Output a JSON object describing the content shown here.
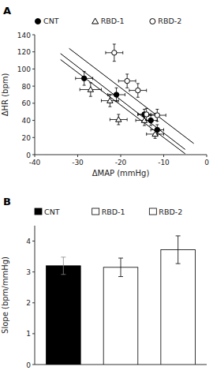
{
  "chart_data": [
    {
      "type": "scatter",
      "title": "A",
      "xlabel": "ΔMAP (mmHg)",
      "ylabel": "ΔHR (bpm)",
      "xlim": [
        -40,
        0
      ],
      "ylim": [
        0,
        140
      ],
      "xticks": [
        -40,
        -30,
        -20,
        -10,
        0
      ],
      "yticks": [
        0,
        20,
        40,
        60,
        80,
        100,
        120,
        140
      ],
      "grid": false,
      "legend": "top",
      "series": [
        {
          "name": "CNT",
          "color": "black",
          "marker": "circle",
          "x": [
            -28.5,
            -21.0,
            -14.5,
            -13.0,
            -11.5
          ],
          "values": [
            89,
            70,
            47,
            40,
            29
          ],
          "x_errors": [
            2.0,
            2.0,
            1.5,
            1.5,
            1.5
          ],
          "errors": [
            8,
            8,
            6,
            6,
            6
          ]
        },
        {
          "name": "RBD-1",
          "color": "black",
          "marker": "triangle-open",
          "x": [
            -27.0,
            -22.5,
            -20.5,
            -14.5,
            -12.0
          ],
          "values": [
            76,
            63,
            41,
            40,
            24
          ],
          "x_errors": [
            2.5,
            2.0,
            2.0,
            2.0,
            2.0
          ],
          "errors": [
            8,
            7,
            6,
            6,
            5
          ]
        },
        {
          "name": "RBD-2",
          "color": "black",
          "marker": "circle-open",
          "x": [
            -21.5,
            -18.5,
            -16.0,
            -14.0,
            -11.5
          ],
          "values": [
            119,
            86,
            75,
            47,
            46
          ],
          "x_errors": [
            2.0,
            2.0,
            2.0,
            2.0,
            2.0
          ],
          "errors": [
            10,
            8,
            8,
            7,
            7
          ]
        },
        {
          "type": "line",
          "color": "black",
          "x": [
            -34,
            -5
          ],
          "values": [
            118,
            6
          ]
        },
        {
          "type": "line",
          "color": "black",
          "x": [
            -34,
            -5
          ],
          "values": [
            111,
            1
          ]
        },
        {
          "type": "line",
          "color": "black",
          "x": [
            -32,
            -3
          ],
          "values": [
            124,
            13
          ]
        }
      ]
    },
    {
      "type": "bar",
      "title": "B",
      "ylabel": "Slope (bpm/mmHg)",
      "categories": [
        "CNT",
        "RBD-1",
        "RBD-2"
      ],
      "values": [
        3.2,
        3.15,
        3.72
      ],
      "errors": [
        0.28,
        0.3,
        0.45
      ],
      "colors": [
        "black",
        "white",
        "white"
      ],
      "ylim": [
        0,
        4.5
      ],
      "yticks": [
        0,
        1,
        2,
        3,
        4
      ],
      "grid": false,
      "legend": "top",
      "tick_labels": "y"
    }
  ]
}
